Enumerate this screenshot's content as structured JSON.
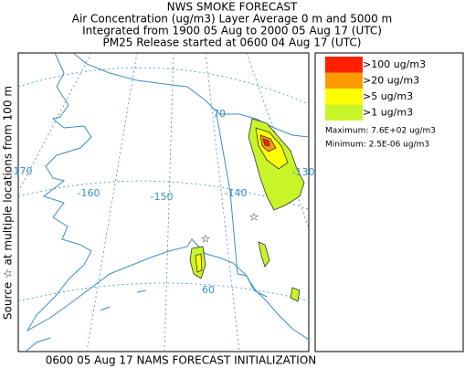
{
  "header": {
    "lines": [
      "NWS SMOKE FORECAST",
      "Air Concentration (ug/m3) Layer Average    0 m and  5000 m",
      "Integrated from 1900 05 Aug to 2000 05 Aug 17 (UTC)",
      "PM25 Release started at 0600 04 Aug 17 (UTC)"
    ]
  },
  "side_label": "Source ☆   at multiple locations   from   100 m",
  "legend": {
    "items": [
      {
        "label": ">100 ug/m3",
        "color": "#ff2000"
      },
      {
        "label": ">20 ug/m3",
        "color": "#ff9a00"
      },
      {
        "label": ">5 ug/m3",
        "color": "#ffff00"
      },
      {
        "label": ">1 ug/m3",
        "color": "#c8f52a"
      }
    ],
    "maximum": "Maximum: 7.6E+02 ug/m3",
    "minimum": "Minimum: 2.5E-06 ug/m3"
  },
  "map_labels": [
    "70",
    "-170",
    "-160",
    "-150",
    "-140",
    "60",
    "-130"
  ],
  "footer": "0600 05 Aug 17 NAMS FORECAST INITIALIZATION"
}
